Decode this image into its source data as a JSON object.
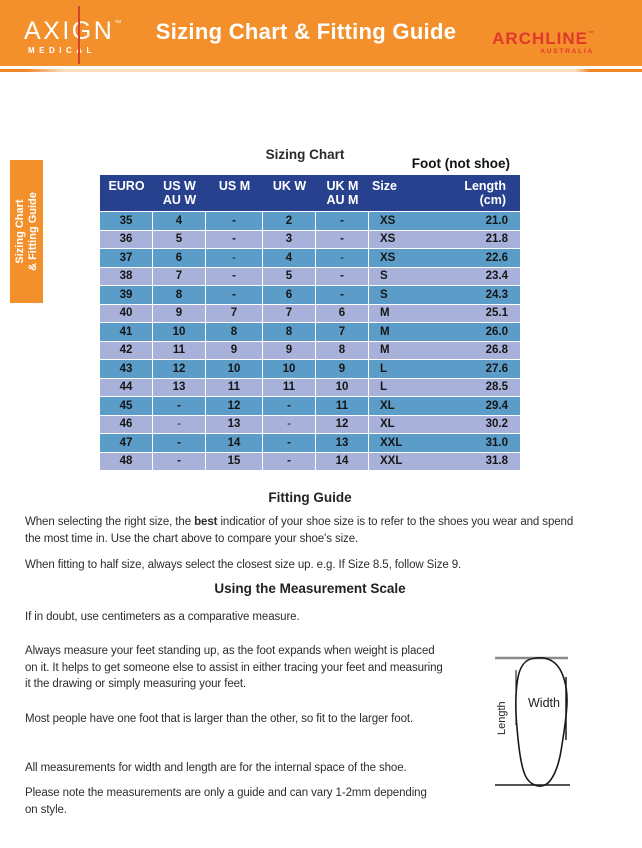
{
  "header": {
    "brand_left": {
      "name": "AXIGN",
      "tm": "™",
      "sub": "MEDICAL"
    },
    "title": "Sizing Chart & Fitting Guide",
    "brand_right": {
      "name": "ARCHLINE",
      "tm": "™",
      "sub": "AUSTRALIA"
    }
  },
  "side_tab": {
    "line1": "Sizing Chart",
    "line2": "& Fitting Guide"
  },
  "sizing_chart": {
    "title": "Sizing Chart",
    "foot_note": "Foot (not shoe)",
    "columns": [
      {
        "l1": "EURO",
        "l2": ""
      },
      {
        "l1": "US W",
        "l2": "AU W"
      },
      {
        "l1": "US M",
        "l2": ""
      },
      {
        "l1": "UK W",
        "l2": ""
      },
      {
        "l1": "UK M",
        "l2": "AU M"
      },
      {
        "l1": "Size",
        "l2": ""
      },
      {
        "l1": "Length",
        "l2": "(cm)"
      }
    ],
    "rows": [
      [
        "35",
        "4",
        "-",
        "2",
        "-",
        "XS",
        "21.0"
      ],
      [
        "36",
        "5",
        "-",
        "3",
        "-",
        "XS",
        "21.8"
      ],
      [
        "37",
        "6",
        "-",
        "4",
        "-",
        "XS",
        "22.6"
      ],
      [
        "38",
        "7",
        "-",
        "5",
        "-",
        "S",
        "23.4"
      ],
      [
        "39",
        "8",
        "-",
        "6",
        "-",
        "S",
        "24.3"
      ],
      [
        "40",
        "9",
        "7",
        "7",
        "6",
        "M",
        "25.1"
      ],
      [
        "41",
        "10",
        "8",
        "8",
        "7",
        "M",
        "26.0"
      ],
      [
        "42",
        "11",
        "9",
        "9",
        "8",
        "M",
        "26.8"
      ],
      [
        "43",
        "12",
        "10",
        "10",
        "9",
        "L",
        "27.6"
      ],
      [
        "44",
        "13",
        "11",
        "11",
        "10",
        "L",
        "28.5"
      ],
      [
        "45",
        "-",
        "12",
        "-",
        "11",
        "XL",
        "29.4"
      ],
      [
        "46",
        "-",
        "13",
        "-",
        "12",
        "XL",
        "30.2"
      ],
      [
        "47",
        "-",
        "14",
        "-",
        "13",
        "XXL",
        "31.0"
      ],
      [
        "48",
        "-",
        "15",
        "-",
        "14",
        "XXL",
        "31.8"
      ]
    ],
    "light_dash_rows": [
      "37",
      "46"
    ]
  },
  "fitting_guide": {
    "title": "Fitting Guide",
    "p1_before": "When selecting the right size, the ",
    "p1_bold": "best",
    "p1_after": " indicatior of your shoe size is to refer to the shoes you wear and spend\nthe most time in. Use the chart above to compare your shoe's size.",
    "p2": "When fitting to half size, always select the closest size up. e.g. If Size 8.5, follow Size 9."
  },
  "measurement": {
    "title": "Using the Measurement Scale",
    "p1": "If in doubt, use centimeters as a comparative measure.",
    "p2": "Always measure your feet standing up, as the foot expands when weight is placed\non it. It helps to get someone else to assist in either tracing your feet and measuring\nit the drawing or simply measuring your feet.",
    "p3": "Most people have one foot that is larger than the other, so fit to the larger foot.",
    "p4": "All measurements for width and length are for the internal space of the shoe.",
    "p5": "Please note the measurements are only a guide and can vary 1-2mm depending\non style."
  },
  "diagram": {
    "width_label": "Width",
    "length_label": "Length"
  },
  "colors": {
    "orange": "#F3902C",
    "brand_red": "#E2372B",
    "table_header_navy": "#28418F",
    "row_blue": "#5B9CC9",
    "row_lavender": "#A8B1D9"
  }
}
